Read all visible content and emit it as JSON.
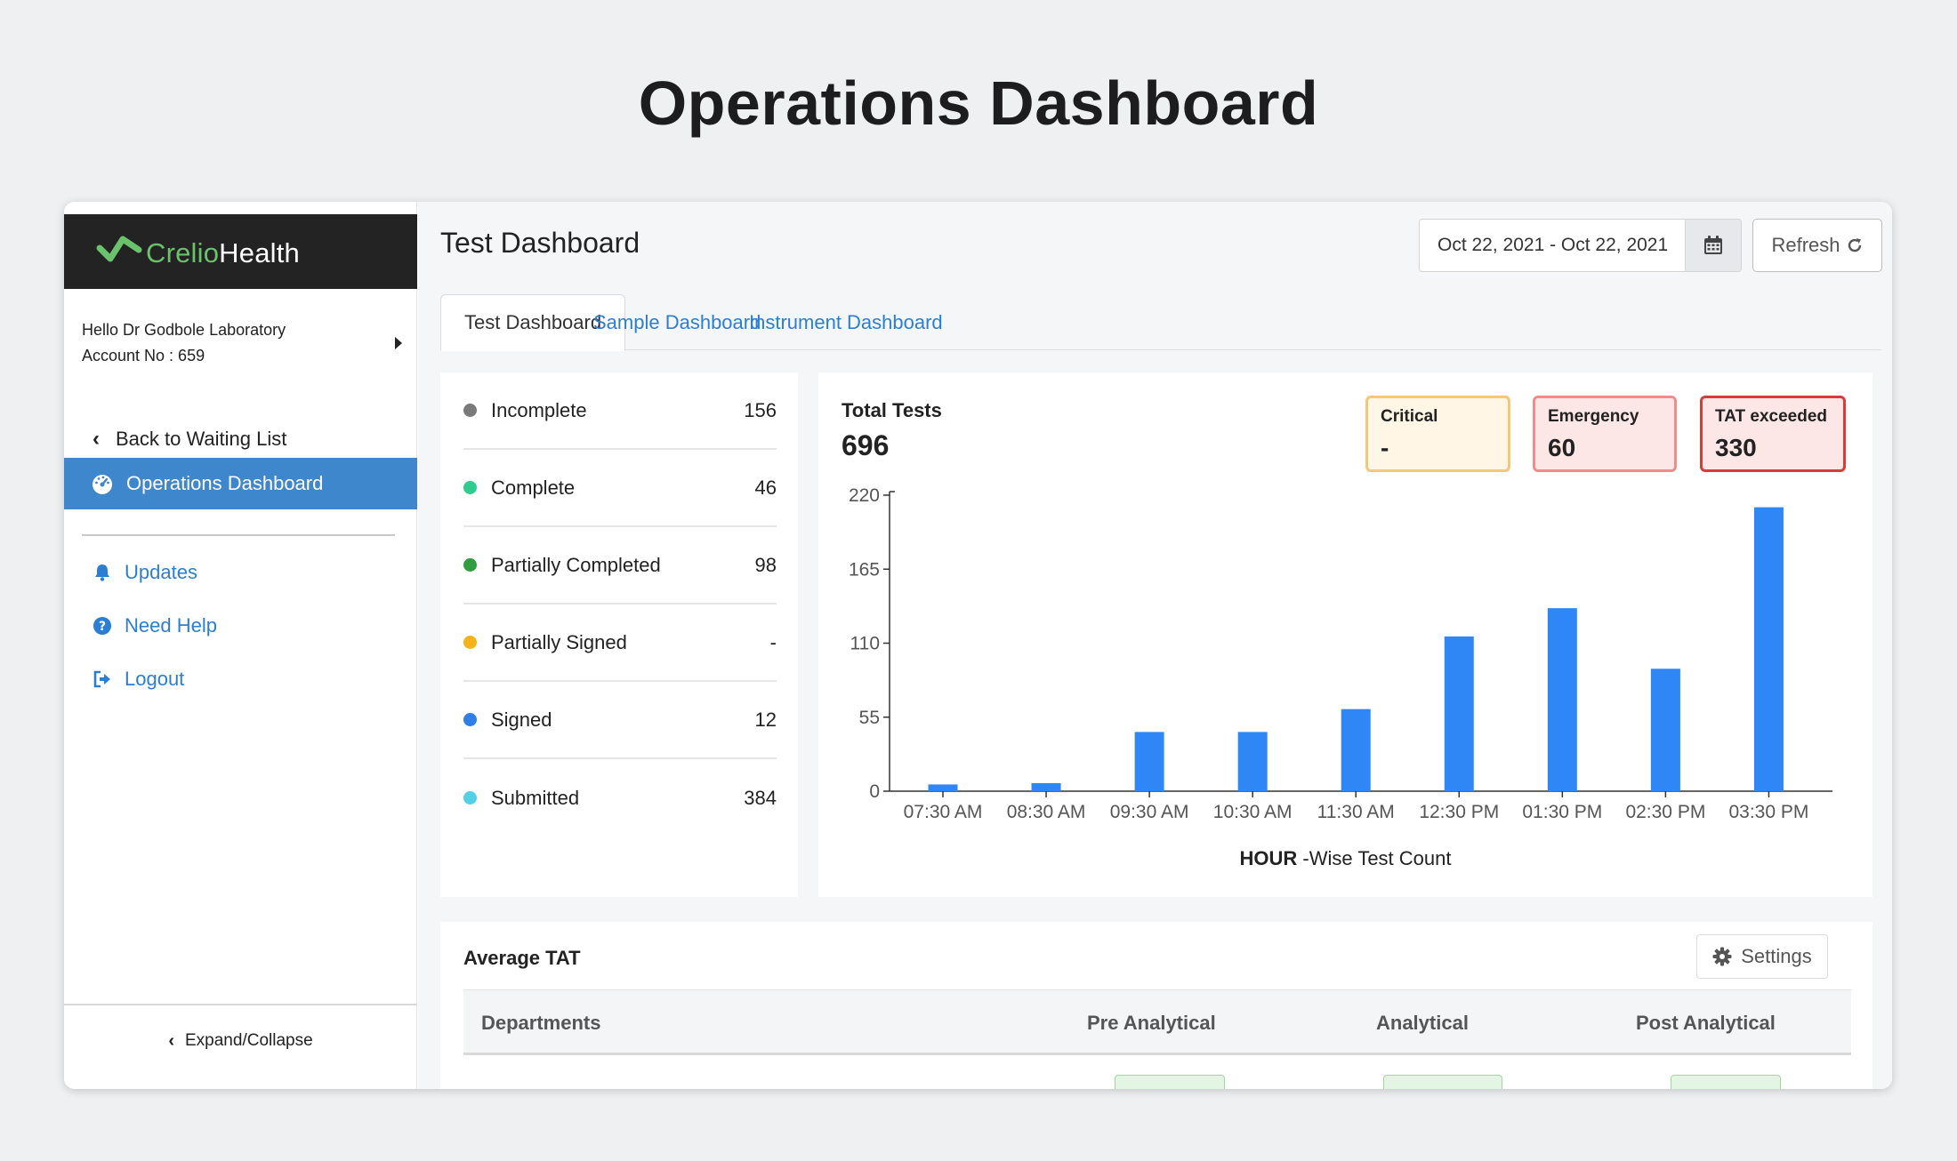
{
  "page_title": "Operations Dashboard",
  "colors": {
    "accent": "#3f87cc",
    "link": "#2a7fd4",
    "bar": "#2f86f5"
  },
  "sidebar": {
    "logo_part1": "Crelio",
    "logo_part2": "Health",
    "greeting": "Hello Dr Godbole Laboratory",
    "account": "Account No : 659",
    "back_label": "Back to Waiting List",
    "active_label": "Operations Dashboard",
    "links": [
      {
        "label": "Updates",
        "icon": "bell-icon"
      },
      {
        "label": "Need Help",
        "icon": "question-icon"
      },
      {
        "label": "Logout",
        "icon": "logout-icon"
      }
    ],
    "footer_label": "Expand/Collapse"
  },
  "main": {
    "title": "Test Dashboard",
    "date_range": "Oct 22, 2021 - Oct 22, 2021",
    "refresh_label": "Refresh",
    "tabs": [
      {
        "label": "Test Dashboard"
      },
      {
        "label": "Sample Dashboard"
      },
      {
        "label": "Instrument Dashboard"
      }
    ]
  },
  "status_list": [
    {
      "label": "Incomplete",
      "value": "156",
      "color": "#7a7a7a"
    },
    {
      "label": "Complete",
      "value": "46",
      "color": "#2ecc8f"
    },
    {
      "label": "Partially Completed",
      "value": "98",
      "color": "#2e9e3e"
    },
    {
      "label": "Partially Signed",
      "value": "-",
      "color": "#f5b31a"
    },
    {
      "label": "Signed",
      "value": "12",
      "color": "#2f7fe6"
    },
    {
      "label": "Submitted",
      "value": "384",
      "color": "#52d0e6"
    }
  ],
  "totals": {
    "label": "Total Tests",
    "value": "696",
    "critical_label": "Critical",
    "critical_value": "-",
    "emergency_label": "Emergency",
    "emergency_value": "60",
    "tat_label": "TAT exceeded",
    "tat_value": "330"
  },
  "chart_data": {
    "type": "bar",
    "categories": [
      "07:30 AM",
      "08:30 AM",
      "09:30 AM",
      "10:30 AM",
      "11:30 AM",
      "12:30 PM",
      "01:30 PM",
      "02:30 PM",
      "03:30 PM"
    ],
    "values": [
      5,
      6,
      44,
      44,
      61,
      115,
      136,
      91,
      211
    ],
    "yticks": [
      0,
      55,
      110,
      165,
      220
    ],
    "ylim": [
      0,
      220
    ],
    "xlabel_bold": "HOUR",
    "xlabel_rest": " -Wise Test Count",
    "grid": false
  },
  "avg_tat": {
    "title": "Average TAT",
    "settings_label": "Settings",
    "columns": [
      "Departments",
      "Pre Analytical",
      "Analytical",
      "Post Analytical"
    ]
  }
}
